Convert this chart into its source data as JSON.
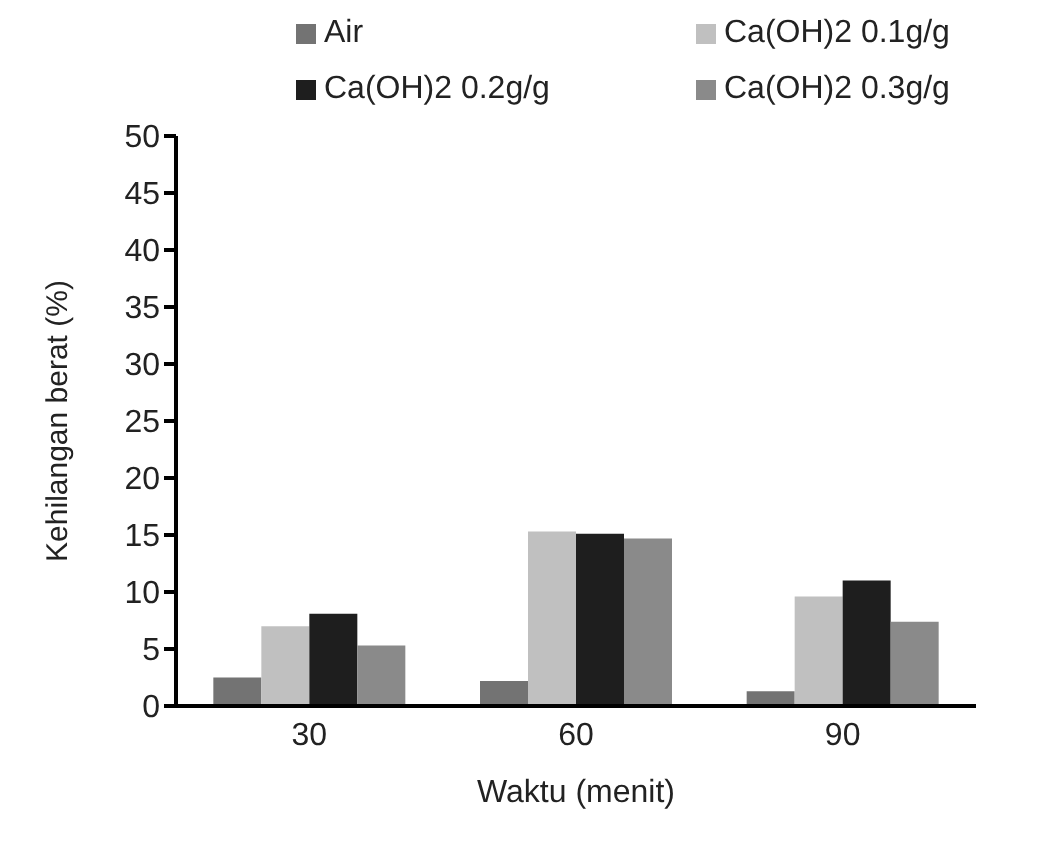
{
  "chart_data": {
    "type": "bar",
    "categories": [
      "30",
      "60",
      "90"
    ],
    "series": [
      {
        "name": "Air",
        "color": "#737373",
        "values": [
          2.5,
          2.2,
          1.3
        ]
      },
      {
        "name": "Ca(OH)2 0.1g/g",
        "color": "#c0c0c0",
        "values": [
          7.0,
          15.3,
          9.6
        ]
      },
      {
        "name": "Ca(OH)2 0.2g/g",
        "color": "#1e1e1e",
        "values": [
          8.1,
          15.1,
          11.0
        ]
      },
      {
        "name": "Ca(OH)2 0.3g/g",
        "color": "#8a8a8a",
        "values": [
          5.3,
          14.7,
          7.4
        ]
      }
    ],
    "xlabel": "Waktu (menit)",
    "ylabel": "Kehilangan berat (%)",
    "ylim": [
      0,
      50
    ],
    "yticks": [
      0,
      5,
      10,
      15,
      20,
      25,
      30,
      35,
      40,
      45,
      50
    ],
    "legend": "top"
  }
}
